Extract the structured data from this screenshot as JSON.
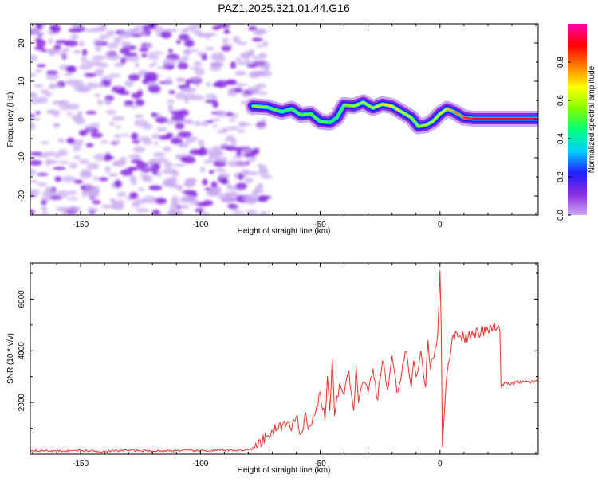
{
  "title": "PAZ1.2025.321.01.44.G16",
  "colors": {
    "snr_line": "#e8312b",
    "spec_trace": "#e0202a",
    "noise_main": "#8a2be2",
    "noise_light": "#c8a8f0",
    "axis": "#000000"
  },
  "chart_data": [
    {
      "id": "spectrogram",
      "type": "heatmap",
      "title": "PAZ1.2025.321.01.44.G16",
      "xlabel": "Height of straight line (km)",
      "ylabel": "Frequency (Hz)",
      "xlim": [
        -171,
        41
      ],
      "ylim": [
        -25,
        25
      ],
      "xticks": [
        -150,
        -100,
        -50,
        0
      ],
      "yticks": [
        -20,
        -10,
        0,
        10,
        20
      ],
      "colorbar": {
        "label": "Normalized spectral amplitude",
        "range": [
          0,
          1
        ],
        "ticks": [
          "0.0",
          "0.2",
          "0.4",
          "0.6",
          "0.8"
        ],
        "tick_values": [
          0.0,
          0.2,
          0.4,
          0.6,
          0.8
        ],
        "colormap": [
          "#c8a8f0",
          "#8a2be2",
          "#2020ff",
          "#00d0ff",
          "#00ff80",
          "#80ff00",
          "#ffff00",
          "#ff8000",
          "#ff0000",
          "#ff00b0"
        ]
      },
      "noise_region_km": [
        -171,
        -75
      ],
      "signal_ridge": {
        "height_km": [
          -78,
          -72,
          -66,
          -62,
          -58,
          -54,
          -50,
          -46,
          -43,
          -40,
          -36,
          -32,
          -28,
          -24,
          -20,
          -16,
          -12,
          -9,
          -6,
          -3,
          0,
          3,
          6,
          10,
          14,
          41
        ],
        "freq_hz": [
          3.5,
          3.2,
          2.0,
          2.8,
          1.2,
          1.5,
          -0.5,
          -0.8,
          0.5,
          3.8,
          3.5,
          4.5,
          3.0,
          4.0,
          3.5,
          2.0,
          0.5,
          -1.8,
          -1.5,
          -0.5,
          1.5,
          2.8,
          2.0,
          0.5,
          0.2,
          0.2
        ],
        "amplitude": [
          0.55,
          0.6,
          0.45,
          0.5,
          0.55,
          0.5,
          0.55,
          0.5,
          0.45,
          0.55,
          0.6,
          0.6,
          0.6,
          0.65,
          0.7,
          0.65,
          0.6,
          0.55,
          0.6,
          0.65,
          0.6,
          0.7,
          0.75,
          0.8,
          0.9,
          0.92
        ]
      }
    },
    {
      "id": "snr",
      "type": "line",
      "xlabel": "Height of straight line (km)",
      "ylabel": "SNR (10 * v/v)",
      "xlim": [
        -171,
        41
      ],
      "ylim": [
        0,
        7400
      ],
      "xticks": [
        -150,
        -100,
        -50,
        0
      ],
      "yticks": [
        2000,
        4000,
        6000
      ],
      "series": [
        {
          "name": "SNR",
          "x": [
            -171,
            -160,
            -150,
            -140,
            -130,
            -120,
            -110,
            -100,
            -90,
            -80,
            -76,
            -72,
            -68,
            -64,
            -62,
            -60,
            -58,
            -56,
            -55,
            -54,
            -52,
            -50,
            -48,
            -47,
            -46,
            -45,
            -44,
            -42,
            -40,
            -38,
            -36,
            -35,
            -34,
            -32,
            -30,
            -28,
            -26,
            -25,
            -24,
            -22,
            -20,
            -18,
            -16,
            -14,
            -12,
            -11,
            -10,
            -8,
            -6,
            -5,
            -4,
            -3,
            -2,
            -1,
            0,
            0.5,
            1,
            2,
            3,
            5,
            7,
            10,
            13,
            16,
            20,
            24,
            25,
            25.5,
            26,
            30,
            35,
            41
          ],
          "values": [
            150,
            120,
            140,
            110,
            150,
            120,
            140,
            130,
            150,
            160,
            300,
            700,
            1000,
            1200,
            900,
            1450,
            800,
            1600,
            950,
            1100,
            1600,
            2400,
            1300,
            3000,
            1700,
            3700,
            1500,
            2700,
            2300,
            3200,
            1700,
            3400,
            2000,
            2800,
            2400,
            3300,
            2100,
            2900,
            3600,
            2500,
            3800,
            2400,
            3100,
            4000,
            2600,
            3600,
            3000,
            4000,
            2600,
            4400,
            3300,
            3700,
            4100,
            4600,
            7100,
            5000,
            300,
            1800,
            3200,
            4400,
            4700,
            4500,
            4600,
            4700,
            4800,
            4900,
            4750,
            2600,
            2700,
            2750,
            2800,
            2800
          ]
        }
      ]
    }
  ]
}
